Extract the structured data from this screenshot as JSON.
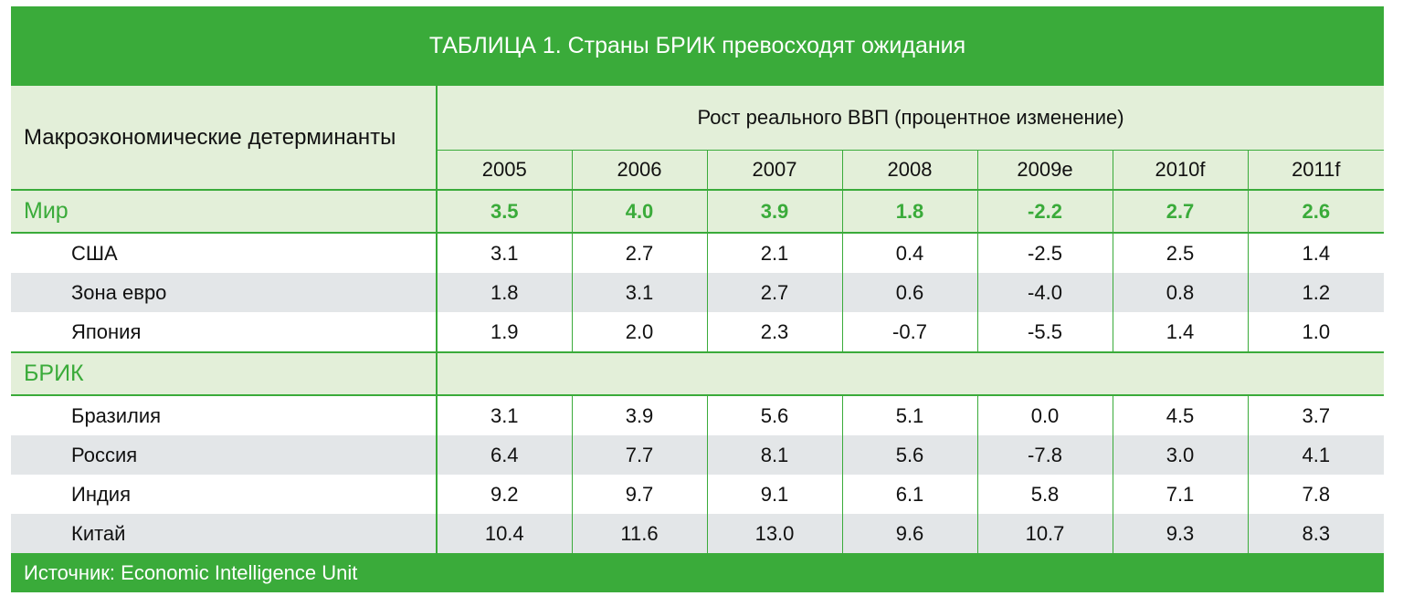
{
  "title": "ТАБЛИЦА 1. Страны БРИК превосходят ожидания",
  "header": {
    "label": "Макроэкономические детерминанты",
    "growth": "Рост реального ВВП (процентное изменение)",
    "years": [
      "2005",
      "2006",
      "2007",
      "2008",
      "2009e",
      "2010f",
      "2011f"
    ]
  },
  "world": {
    "name": "Мир",
    "values": [
      "3.5",
      "4.0",
      "3.9",
      "1.8",
      "-2.2",
      "2.7",
      "2.6"
    ],
    "rows": [
      {
        "name": "США",
        "values": [
          "3.1",
          "2.7",
          "2.1",
          "0.4",
          "-2.5",
          "2.5",
          "1.4"
        ]
      },
      {
        "name": "Зона евро",
        "values": [
          "1.8",
          "3.1",
          "2.7",
          "0.6",
          "-4.0",
          "0.8",
          "1.2"
        ]
      },
      {
        "name": "Япония",
        "values": [
          "1.9",
          "2.0",
          "2.3",
          "-0.7",
          "-5.5",
          "1.4",
          "1.0"
        ]
      }
    ]
  },
  "bric": {
    "name": "БРИК",
    "rows": [
      {
        "name": "Бразилия",
        "values": [
          "3.1",
          "3.9",
          "5.6",
          "5.1",
          "0.0",
          "4.5",
          "3.7"
        ]
      },
      {
        "name": "Россия",
        "values": [
          "6.4",
          "7.7",
          "8.1",
          "5.6",
          "-7.8",
          "3.0",
          "4.1"
        ]
      },
      {
        "name": "Индия",
        "values": [
          "9.2",
          "9.7",
          "9.1",
          "6.1",
          "5.8",
          "7.1",
          "7.8"
        ]
      },
      {
        "name": "Китай",
        "values": [
          "10.4",
          "11.6",
          "13.0",
          "9.6",
          "10.7",
          "9.3",
          "8.3"
        ]
      }
    ]
  },
  "source": "Источник: Economic Intelligence Unit",
  "colors": {
    "accent": "#3aab3a",
    "header_bg": "#e3efd9",
    "stripe_bg": "#e3e6e8"
  }
}
